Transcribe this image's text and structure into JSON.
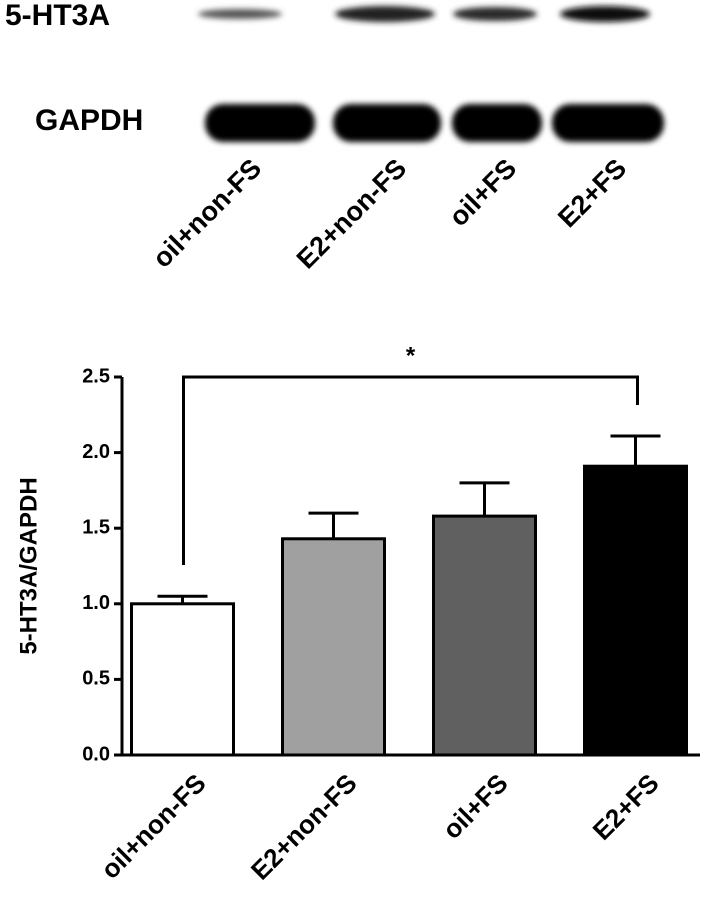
{
  "blot": {
    "rows": [
      "5-HT3A",
      "GAPDH"
    ],
    "lanes": [
      "oil+non-FS",
      "E2+non-FS",
      "oil+FS",
      "E2+FS"
    ]
  },
  "chart_data": {
    "type": "bar",
    "y_label": "5-HT3A/GAPDH",
    "categories": [
      "oil+non-FS",
      "E2+non-FS",
      "oil+FS",
      "E2+FS"
    ],
    "values": [
      1.0,
      1.43,
      1.58,
      1.91
    ],
    "errors": [
      0.05,
      0.17,
      0.22,
      0.2
    ],
    "colors": [
      "#ffffff",
      "#a0a0a0",
      "#606060",
      "#000000"
    ],
    "ylim": [
      0,
      2.5
    ],
    "yticks": [
      {
        "value": 0,
        "label": "0.0"
      },
      {
        "value": 0.5,
        "label": "0.5"
      },
      {
        "value": 1,
        "label": "1.0"
      },
      {
        "value": 1.5,
        "label": "1.5"
      },
      {
        "value": 2,
        "label": "2.0"
      },
      {
        "value": 2.5,
        "label": "2.5"
      }
    ],
    "annotation": "*"
  }
}
